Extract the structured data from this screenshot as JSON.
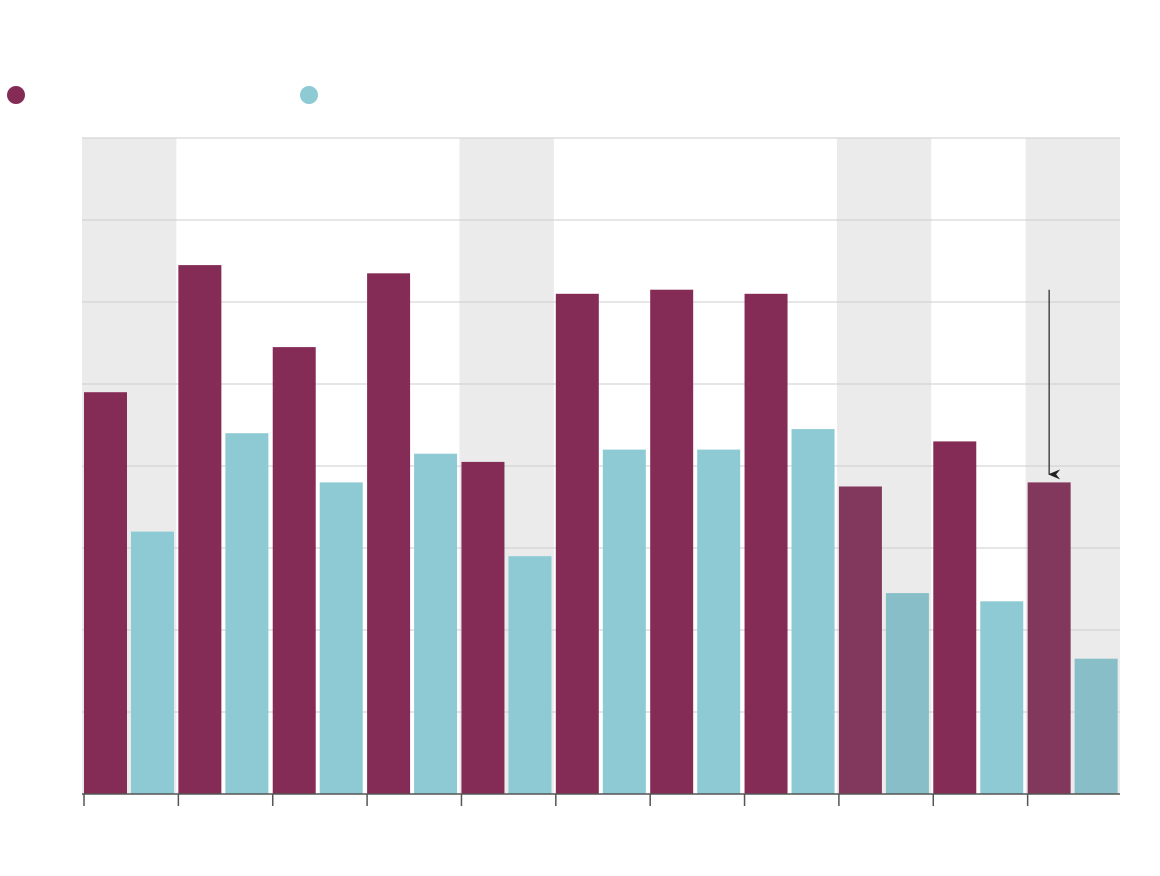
{
  "legend": [
    {
      "name": "",
      "color": "#852c56"
    },
    {
      "name": "",
      "color": "#8dcad3"
    }
  ],
  "chart_data": {
    "type": "bar",
    "categories": [
      "",
      "",
      "",
      "",
      "",
      "",
      "",
      "",
      "",
      "",
      ""
    ],
    "series": [
      {
        "values": [
          4.9,
          6.45,
          5.45,
          6.35,
          4.05,
          6.1,
          6.15,
          6.1,
          3.75,
          4.3,
          3.8
        ]
      },
      {
        "values": [
          3.2,
          4.4,
          3.8,
          4.15,
          2.9,
          4.2,
          4.2,
          4.45,
          2.45,
          2.35,
          1.65
        ]
      }
    ],
    "ylim": [
      0,
      8
    ],
    "grid": true,
    "shaded_categories": [
      0,
      4,
      8,
      10
    ],
    "dimmed_categories": [
      8,
      10
    ],
    "annotation": {
      "type": "arrow",
      "category": 10,
      "series": 0,
      "label": ""
    },
    "colors": {
      "series_a": "#852c56",
      "series_b": "#8dcad3",
      "series_a_dim": "#82375c",
      "series_b_dim": "#87bec7",
      "shade": "#ebebeb",
      "grid": "#cccccc",
      "axis": "#555555",
      "arrow": "#222222"
    },
    "title": "",
    "xlabel": "",
    "ylabel": ""
  }
}
